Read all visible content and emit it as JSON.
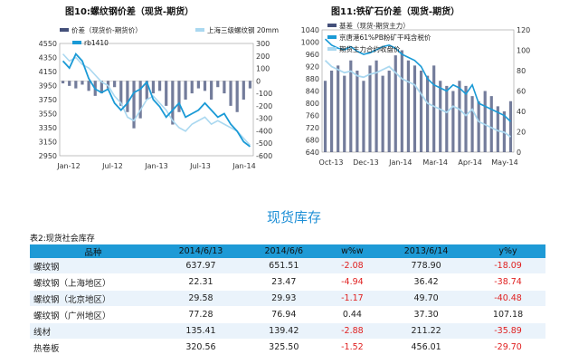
{
  "chart_data": [
    {
      "type": "line",
      "title": "图10:螺纹钢价差（现货-期货）",
      "legend": [
        "价差（现货价-期货价）",
        "上海三级螺纹钢 20mm",
        "rb1410"
      ],
      "colors": {
        "spread": "#44507a",
        "spot": "#aad8f0",
        "futures": "#1a9ad6"
      },
      "x_ticks": [
        "Jan-12",
        "Jul-12",
        "Jan-13",
        "Jul-13",
        "Jan-14"
      ],
      "y_left_ticks": [
        "4550",
        "4350",
        "4150",
        "3950",
        "3750",
        "3550",
        "3350",
        "3150",
        "2950"
      ],
      "y_right_ticks": [
        "300",
        "200",
        "100",
        "0",
        "-100",
        "-200",
        "-300",
        "-400",
        "-500",
        "-600"
      ],
      "ylim_left": [
        2950,
        4550
      ],
      "ylim_right": [
        -600,
        300
      ],
      "series": [
        {
          "name": "价差（现货价-期货价）",
          "axis": "right",
          "kind": "bar",
          "x": [
            0,
            1,
            2,
            3,
            4,
            5,
            6,
            7,
            8,
            9,
            10,
            11,
            12,
            13,
            14,
            15,
            16,
            17,
            18,
            19,
            20,
            21,
            22,
            23,
            24,
            25,
            26,
            27,
            28,
            29
          ],
          "values": [
            -20,
            -40,
            -60,
            -30,
            -80,
            -120,
            -100,
            -60,
            -50,
            -200,
            -250,
            -380,
            -300,
            -150,
            -100,
            -80,
            -200,
            -350,
            -250,
            -150,
            -100,
            -60,
            -80,
            -150,
            -50,
            -100,
            -200,
            -250,
            -150,
            -60
          ]
        },
        {
          "name": "上海三级螺纹钢 20mm",
          "axis": "left",
          "kind": "line",
          "x": [
            0,
            1,
            2,
            3,
            4,
            5,
            6,
            7,
            8,
            9,
            10,
            11,
            12,
            13,
            14,
            15,
            16,
            17,
            18,
            19,
            20,
            21,
            22,
            23,
            24,
            25,
            26,
            27,
            28,
            29
          ],
          "values": [
            4400,
            4300,
            4350,
            4250,
            4200,
            4100,
            4000,
            3950,
            3800,
            3700,
            3500,
            3450,
            3600,
            3750,
            3800,
            3700,
            3600,
            3450,
            3350,
            3300,
            3400,
            3450,
            3500,
            3400,
            3450,
            3400,
            3350,
            3300,
            3200,
            3100
          ]
        },
        {
          "name": "rb1410",
          "axis": "left",
          "kind": "line",
          "x": [
            0,
            1,
            2,
            3,
            4,
            5,
            6,
            7,
            8,
            9,
            10,
            11,
            12,
            13,
            14,
            15,
            16,
            17,
            18,
            19,
            20,
            21,
            22,
            23,
            24,
            25,
            26,
            27,
            28,
            29
          ],
          "values": [
            4300,
            4200,
            4400,
            4300,
            4050,
            3900,
            3850,
            3900,
            3700,
            3600,
            3700,
            3850,
            3900,
            4000,
            3750,
            3650,
            3500,
            3600,
            3700,
            3500,
            3550,
            3600,
            3700,
            3600,
            3500,
            3550,
            3400,
            3300,
            3150,
            3080
          ]
        }
      ]
    },
    {
      "type": "line",
      "title": "图11:铁矿石价差（现货-期货）",
      "legend": [
        "基差（现货-期货主力）",
        "京唐港61%PB粉矿干吨含税价",
        "期货主力合约收盘价"
      ],
      "colors": {
        "basis": "#44507a",
        "spot": "#1a9ad6",
        "futures": "#aad8f0"
      },
      "x_ticks": [
        "Oct-13",
        "Dec-13",
        "Jan-14",
        "Mar-14",
        "Apr-14",
        "May-14"
      ],
      "y_left_ticks": [
        "1040",
        "1000",
        "960",
        "920",
        "880",
        "840",
        "800",
        "760",
        "720",
        "680",
        "640"
      ],
      "y_right_ticks": [
        "120",
        "100",
        "80",
        "60",
        "40",
        "20",
        "0"
      ],
      "ylim_left": [
        640,
        1040
      ],
      "ylim_right": [
        0,
        120
      ],
      "series": [
        {
          "name": "基差（现货-期货主力）",
          "axis": "right",
          "kind": "bar",
          "x": [
            0,
            1,
            2,
            3,
            4,
            5,
            6,
            7,
            8,
            9,
            10,
            11,
            12,
            13,
            14,
            15,
            16,
            17,
            18,
            19,
            20,
            21,
            22,
            23,
            24,
            25,
            26,
            27,
            28,
            29
          ],
          "values": [
            70,
            80,
            85,
            75,
            90,
            80,
            70,
            85,
            90,
            75,
            80,
            95,
            100,
            90,
            85,
            80,
            75,
            85,
            70,
            65,
            60,
            70,
            65,
            55,
            50,
            60,
            55,
            45,
            40,
            50
          ]
        },
        {
          "name": "京唐港61%PB粉矿干吨含税价",
          "axis": "left",
          "kind": "line",
          "x": [
            0,
            1,
            2,
            3,
            4,
            5,
            6,
            7,
            8,
            9,
            10,
            11,
            12,
            13,
            14,
            15,
            16,
            17,
            18,
            19,
            20,
            21,
            22,
            23,
            24,
            25,
            26,
            27,
            28,
            29
          ],
          "values": [
            1010,
            990,
            980,
            975,
            985,
            970,
            960,
            965,
            975,
            985,
            990,
            980,
            960,
            950,
            940,
            920,
            880,
            860,
            850,
            840,
            860,
            850,
            830,
            860,
            800,
            790,
            780,
            770,
            760,
            740
          ]
        },
        {
          "name": "期货主力合约收盘价",
          "axis": "left",
          "kind": "line",
          "x": [
            0,
            1,
            2,
            3,
            4,
            5,
            6,
            7,
            8,
            9,
            10,
            11,
            12,
            13,
            14,
            15,
            16,
            17,
            18,
            19,
            20,
            21,
            22,
            23,
            24,
            25,
            26,
            27,
            28,
            29
          ],
          "values": [
            940,
            920,
            910,
            900,
            905,
            890,
            885,
            895,
            900,
            910,
            920,
            900,
            880,
            870,
            860,
            830,
            800,
            790,
            780,
            770,
            790,
            780,
            760,
            780,
            740,
            730,
            720,
            710,
            705,
            690
          ]
        }
      ]
    }
  ],
  "section_title": "现货库存",
  "table": {
    "caption": "表2:现货社会库存",
    "headers": [
      "品种",
      "2014/6/13",
      "2014/6/6",
      "w%w",
      "2013/6/14",
      "y%y"
    ],
    "rows": [
      [
        "螺纹钢",
        "637.97",
        "651.51",
        "-2.08",
        "778.90",
        "-18.09"
      ],
      [
        "螺纹钢（上海地区）",
        "22.31",
        "23.47",
        "-4.94",
        "36.42",
        "-38.74"
      ],
      [
        "螺纹钢（北京地区）",
        "29.58",
        "29.93",
        "-1.17",
        "49.70",
        "-40.48"
      ],
      [
        "螺纹钢（广州地区）",
        "77.28",
        "76.94",
        "0.44",
        "37.30",
        "107.18"
      ],
      [
        "线材",
        "135.41",
        "139.42",
        "-2.88",
        "211.22",
        "-35.89"
      ],
      [
        "热卷板",
        "320.56",
        "325.50",
        "-1.52",
        "456.01",
        "-29.70"
      ]
    ]
  }
}
